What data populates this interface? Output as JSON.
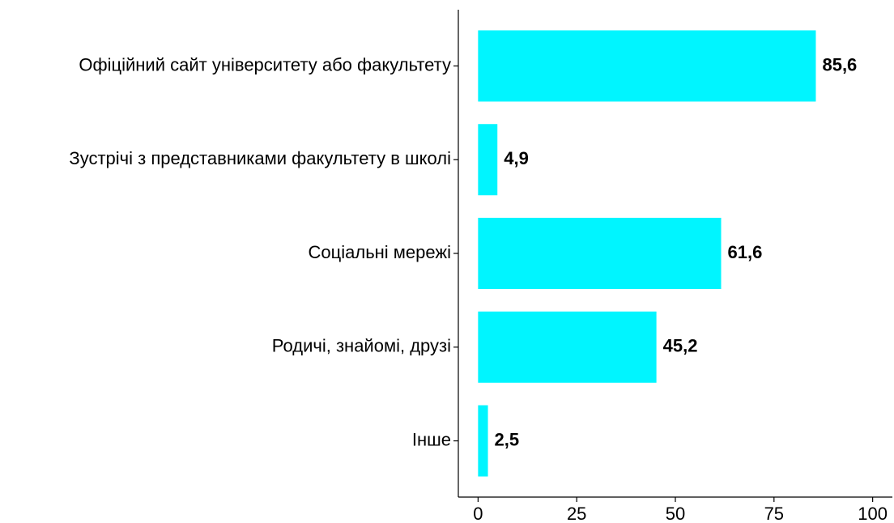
{
  "chart_data": {
    "type": "bar",
    "orientation": "horizontal",
    "categories": [
      "Офіційний сайт університету або факультету",
      "Зустрічі з представниками факультету в школі",
      "Соціальні мережі",
      "Родичі, знайомі, друзі",
      "Інше"
    ],
    "values": [
      85.6,
      4.9,
      61.6,
      45.2,
      2.5
    ],
    "value_labels": [
      "85,6",
      "4,9",
      "61,6",
      "45,2",
      "2,5"
    ],
    "color": "#00f5ff",
    "xlim": [
      -5,
      105
    ],
    "xticks": [
      0,
      25,
      50,
      75,
      100
    ],
    "grid": false
  }
}
